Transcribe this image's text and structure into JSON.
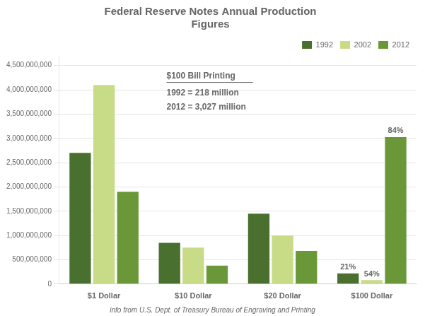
{
  "chart_data": {
    "type": "bar",
    "title": "Federal Reserve Notes Annual Production\nFigures",
    "categories": [
      "$1 Dollar",
      "$10 Dollar",
      "$20 Dollar",
      "$100 Dollar"
    ],
    "series": [
      {
        "name": "1992",
        "color": "#4a7030",
        "values": [
          2700000000,
          850000000,
          1450000000,
          218000000
        ]
      },
      {
        "name": "2002",
        "color": "#c8dc88",
        "values": [
          4100000000,
          750000000,
          1000000000,
          80000000
        ]
      },
      {
        "name": "2012",
        "color": "#6a9838",
        "values": [
          1900000000,
          380000000,
          680000000,
          3027000000
        ]
      }
    ],
    "ylim": [
      0,
      4700000000
    ],
    "yticks": [
      0,
      {
        "value": 500000000,
        "label": "500,000,000"
      },
      {
        "value": 1000000000,
        "label": "1,000,000,000"
      },
      {
        "value": 1500000000,
        "label": "1,500,000,000"
      },
      {
        "value": 2000000000,
        "label": "2,000,000,000"
      },
      {
        "value": 2500000000,
        "label": "2,500,000,000"
      },
      {
        "value": 3000000000,
        "label": "3,000,000,000"
      },
      {
        "value": 3500000000,
        "label": "3,500,000,000"
      },
      {
        "value": 4000000000,
        "label": "4,000,000,000"
      },
      {
        "value": 4500000000,
        "label": "4,500,000,000"
      }
    ],
    "grid": true,
    "legend": "upper right",
    "annotations": [
      {
        "text": "$100 Bill Printing"
      },
      {
        "text": "1992 = 218 million"
      },
      {
        "text": "2012 = 3,027 million"
      },
      {
        "text": "21%",
        "category": "$100 Dollar",
        "series": "1992"
      },
      {
        "text": "54%",
        "category": "$100 Dollar",
        "series": "2002"
      },
      {
        "text": "84%",
        "category": "$100 Dollar",
        "series": "2012"
      }
    ],
    "footer": "info from U.S. Dept. of Treasury Bureau of Engraving and Printing"
  }
}
